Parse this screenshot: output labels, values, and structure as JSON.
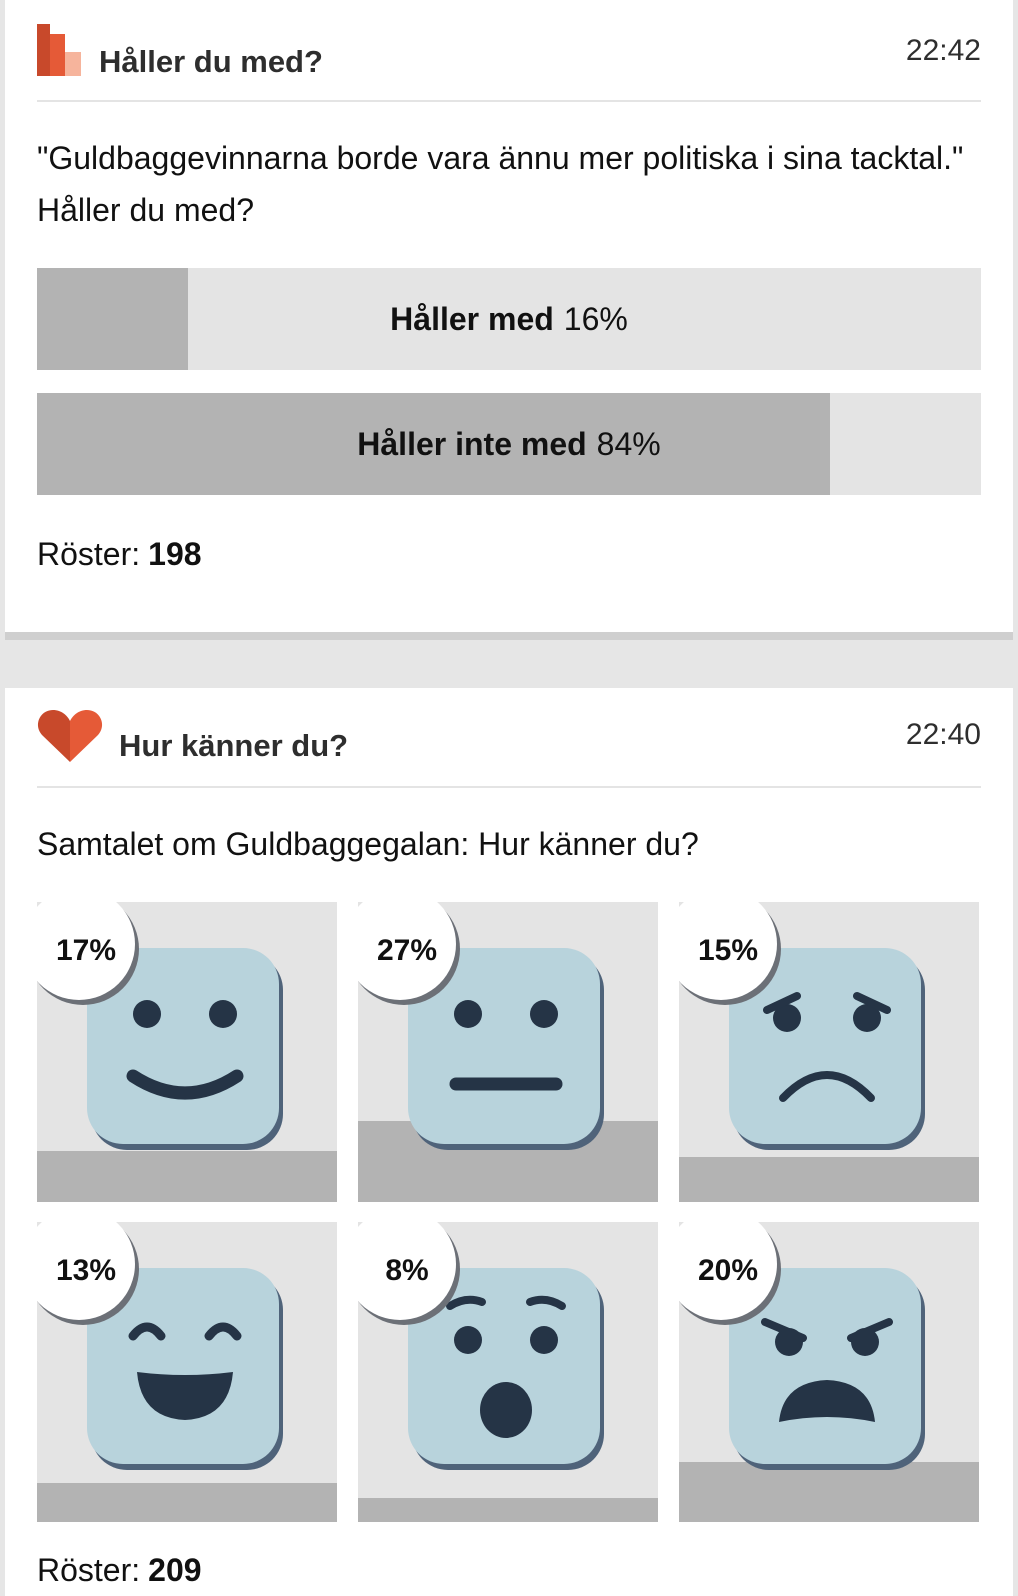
{
  "poll": {
    "title": "Håller du med?",
    "time": "22:42",
    "question": "\"Guldbaggevinnarna borde vara ännu mer politiska i sina tacktal.\" Håller du med?",
    "options": [
      {
        "label": "Håller med",
        "percent_text": "16%",
        "percent": 16
      },
      {
        "label": "Håller inte med",
        "percent_text": "84%",
        "percent": 84
      }
    ],
    "votes_label": "Röster:",
    "votes": "198"
  },
  "mood": {
    "title": "Hur känner du?",
    "time": "22:40",
    "question": "Samtalet om Guldbaggegalan: Hur känner du?",
    "faces": [
      {
        "icon": "happy-face-icon",
        "percent_text": "17%",
        "percent": 17
      },
      {
        "icon": "neutral-face-icon",
        "percent_text": "27%",
        "percent": 27
      },
      {
        "icon": "sad-face-icon",
        "percent_text": "15%",
        "percent": 15
      },
      {
        "icon": "laughing-face-icon",
        "percent_text": "13%",
        "percent": 13
      },
      {
        "icon": "surprised-face-icon",
        "percent_text": "8%",
        "percent": 8
      },
      {
        "icon": "angry-face-icon",
        "percent_text": "20%",
        "percent": 20
      }
    ],
    "votes_label": "Röster:",
    "votes": "209"
  },
  "colors": {
    "accent_dark": "#c8492b",
    "accent": "#e55a37",
    "accent_light": "#f6b49c",
    "bar_fill": "#b3b3b3",
    "bar_bg": "#e4e4e4",
    "face": "#b8d3dc",
    "face_features": "#253446"
  }
}
